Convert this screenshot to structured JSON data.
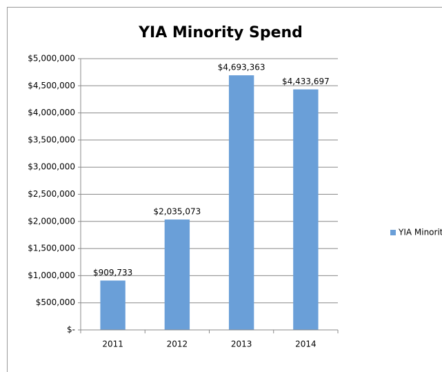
{
  "chart_data": {
    "type": "bar",
    "title": "YIA Minority Spend",
    "categories": [
      "2011",
      "2012",
      "2013",
      "2014"
    ],
    "series": [
      {
        "name": "YIA Minority $",
        "color": "#6a9fd8",
        "values": [
          909733,
          2035073,
          4693363,
          4433697
        ],
        "value_labels": [
          "$909,733",
          "$2,035,073",
          "$4,693,363",
          "$4,433,697"
        ]
      }
    ],
    "ylim": [
      0,
      5000000
    ],
    "yticks": [
      {
        "value": 0,
        "label": "$-"
      },
      {
        "value": 500000,
        "label": "$500,000"
      },
      {
        "value": 1000000,
        "label": "$1,000,000"
      },
      {
        "value": 1500000,
        "label": "$1,500,000"
      },
      {
        "value": 2000000,
        "label": "$2,000,000"
      },
      {
        "value": 2500000,
        "label": "$2,500,000"
      },
      {
        "value": 3000000,
        "label": "$3,000,000"
      },
      {
        "value": 3500000,
        "label": "$3,500,000"
      },
      {
        "value": 4000000,
        "label": "$4,000,000"
      },
      {
        "value": 4500000,
        "label": "$4,500,000"
      },
      {
        "value": 5000000,
        "label": "$5,000,000"
      }
    ],
    "grid": true,
    "legend": "right"
  }
}
